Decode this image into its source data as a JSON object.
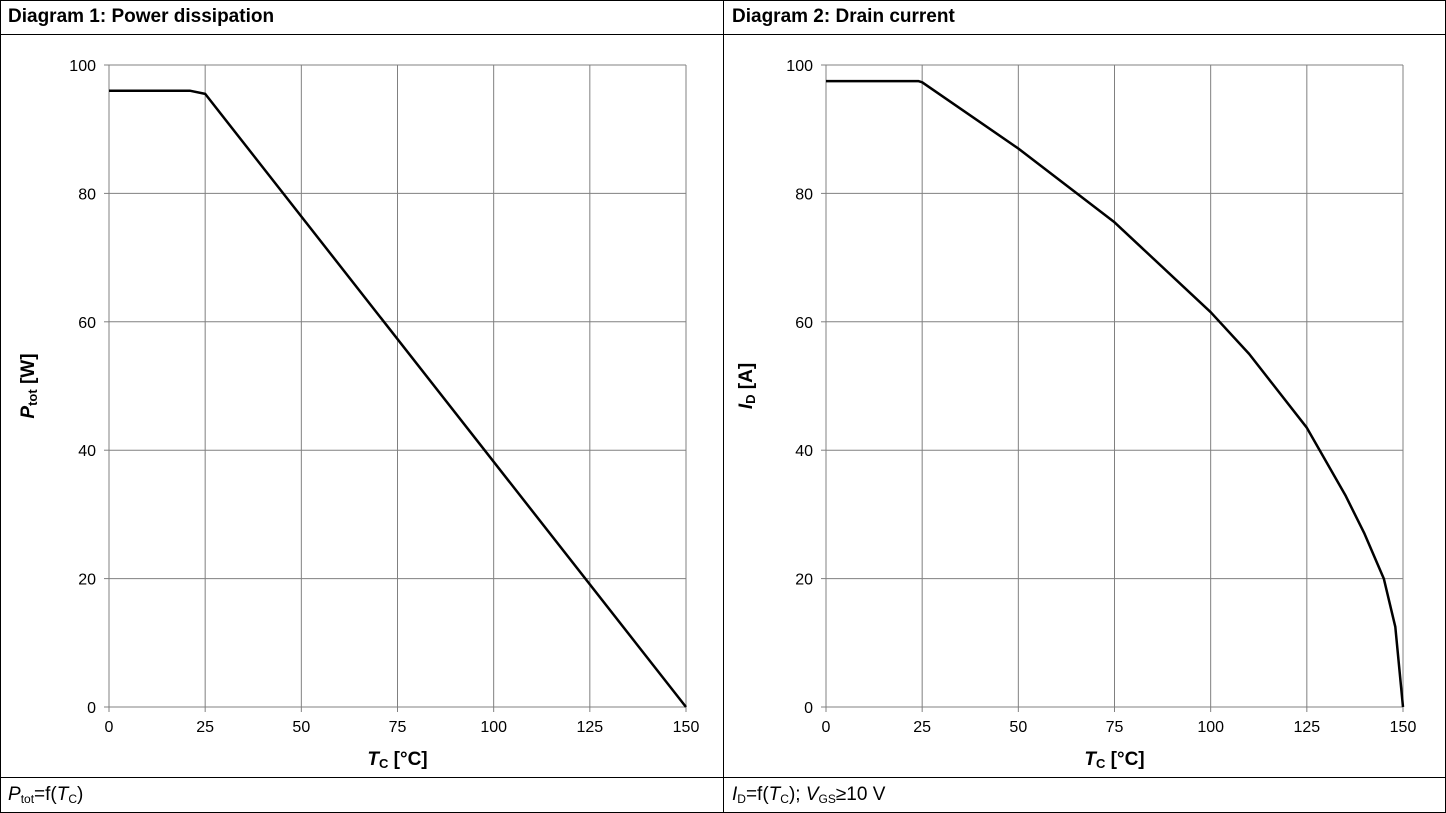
{
  "panels": [
    {
      "title": "Diagram 1: Power dissipation",
      "caption": {
        "main": "P",
        "main_sub": "tot",
        "rest": "=f(",
        "var": "T",
        "var_sub": "C",
        "tail": ")"
      },
      "xlabel": {
        "sym": "T",
        "sub": "C",
        "unit": " [°C]"
      },
      "ylabel": {
        "sym": "P",
        "sub": "tot",
        "unit": " [W]"
      }
    },
    {
      "title": "Diagram 2: Drain current",
      "caption": {
        "main": "I",
        "main_sub": "D",
        "rest": "=f(",
        "var": "T",
        "var_sub": "C",
        "tail": "); ",
        "extra_sym": "V",
        "extra_sub": "GS",
        "extra_tail": "≥10 V"
      },
      "xlabel": {
        "sym": "T",
        "sub": "C",
        "unit": " [°C]"
      },
      "ylabel": {
        "sym": "I",
        "sub": "D",
        "unit": " [A]"
      }
    }
  ],
  "chart_data": [
    {
      "type": "line",
      "title": "Diagram 1: Power dissipation",
      "xlabel": "TC [°C]",
      "ylabel": "Ptot [W]",
      "xlim": [
        0,
        150
      ],
      "ylim": [
        0,
        100
      ],
      "xticks": [
        0,
        25,
        50,
        75,
        100,
        125,
        150
      ],
      "yticks": [
        0,
        20,
        40,
        60,
        80,
        100
      ],
      "grid": true,
      "series": [
        {
          "x": [
            0,
            21,
            25,
            150
          ],
          "y": [
            96,
            96,
            95.5,
            0
          ]
        }
      ]
    },
    {
      "type": "line",
      "title": "Diagram 2: Drain current",
      "xlabel": "TC [°C]",
      "ylabel": "ID [A]",
      "xlim": [
        0,
        150
      ],
      "ylim": [
        0,
        100
      ],
      "xticks": [
        0,
        25,
        50,
        75,
        100,
        125,
        150
      ],
      "yticks": [
        0,
        20,
        40,
        60,
        80,
        100
      ],
      "grid": true,
      "series": [
        {
          "x": [
            0,
            24,
            25,
            50,
            75,
            100,
            110,
            125,
            135,
            140,
            145,
            148,
            150
          ],
          "y": [
            97.5,
            97.5,
            97.3,
            87,
            75.5,
            61.5,
            55,
            43.5,
            33,
            27,
            20,
            12.5,
            0
          ]
        }
      ]
    }
  ]
}
